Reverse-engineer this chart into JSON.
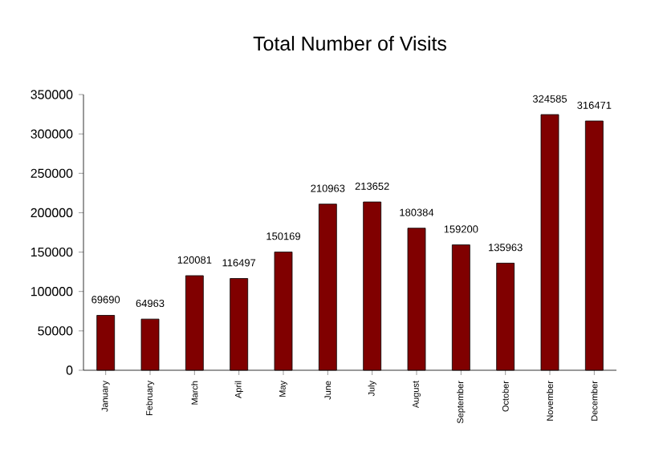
{
  "chart_data": {
    "type": "bar",
    "title": "Total Number of Visits",
    "categories": [
      "January",
      "February",
      "March",
      "April",
      "May",
      "June",
      "July",
      "August",
      "September",
      "October",
      "November",
      "December"
    ],
    "values": [
      69690,
      64963,
      120081,
      116497,
      150169,
      210963,
      213652,
      180384,
      159200,
      135963,
      324585,
      316471
    ],
    "color": "#800000",
    "ylim": [
      0,
      350000
    ],
    "yticks": [
      0,
      50000,
      100000,
      150000,
      200000,
      250000,
      300000,
      350000
    ],
    "data_labels": true,
    "grid": false
  }
}
